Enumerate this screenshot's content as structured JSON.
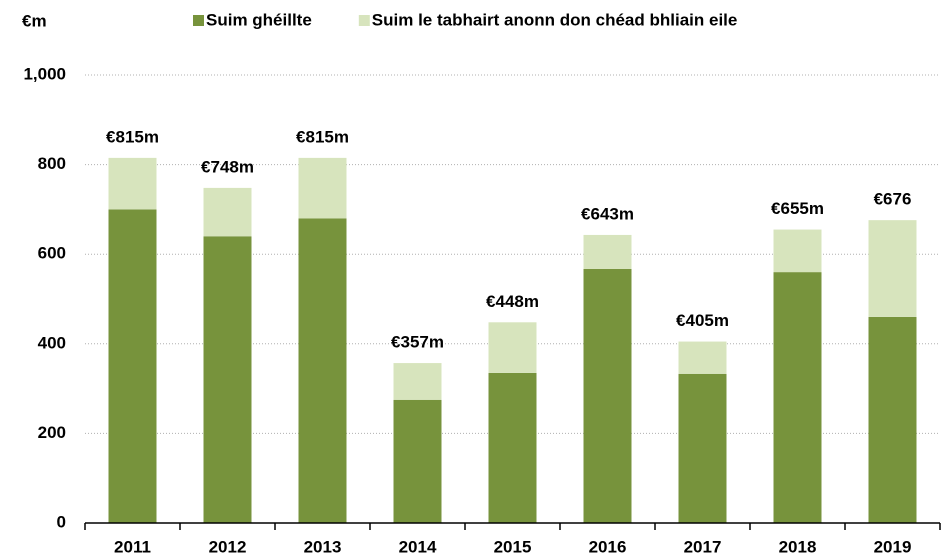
{
  "chart_data": {
    "type": "stacked_bar",
    "y_label": "€m",
    "categories": [
      "2011",
      "2012",
      "2013",
      "2014",
      "2015",
      "2016",
      "2017",
      "2018",
      "2019"
    ],
    "series": [
      {
        "name": "Suim ghéillte",
        "color": "#77933c",
        "values": [
          700,
          640,
          680,
          275,
          335,
          567,
          333,
          560,
          460
        ]
      },
      {
        "name": "Suim le tabhairt anonn don chéad bhliain eile",
        "color": "#d7e4bd",
        "values": [
          115,
          108,
          135,
          82,
          113,
          76,
          72,
          95,
          216
        ]
      }
    ],
    "totals": {
      "values": [
        815,
        748,
        815,
        357,
        448,
        643,
        405,
        655,
        676
      ],
      "value_labels": [
        "€815m",
        "€748m",
        "€815m",
        "€357m",
        "€448m",
        "€643m",
        "€405m",
        "€655m",
        "€676"
      ]
    },
    "ylim": [
      0,
      1000
    ],
    "yticks": [
      0,
      200,
      400,
      600,
      800,
      {
        "value": 1000,
        "label": "1,000"
      }
    ],
    "grid": true,
    "legend": "top"
  }
}
